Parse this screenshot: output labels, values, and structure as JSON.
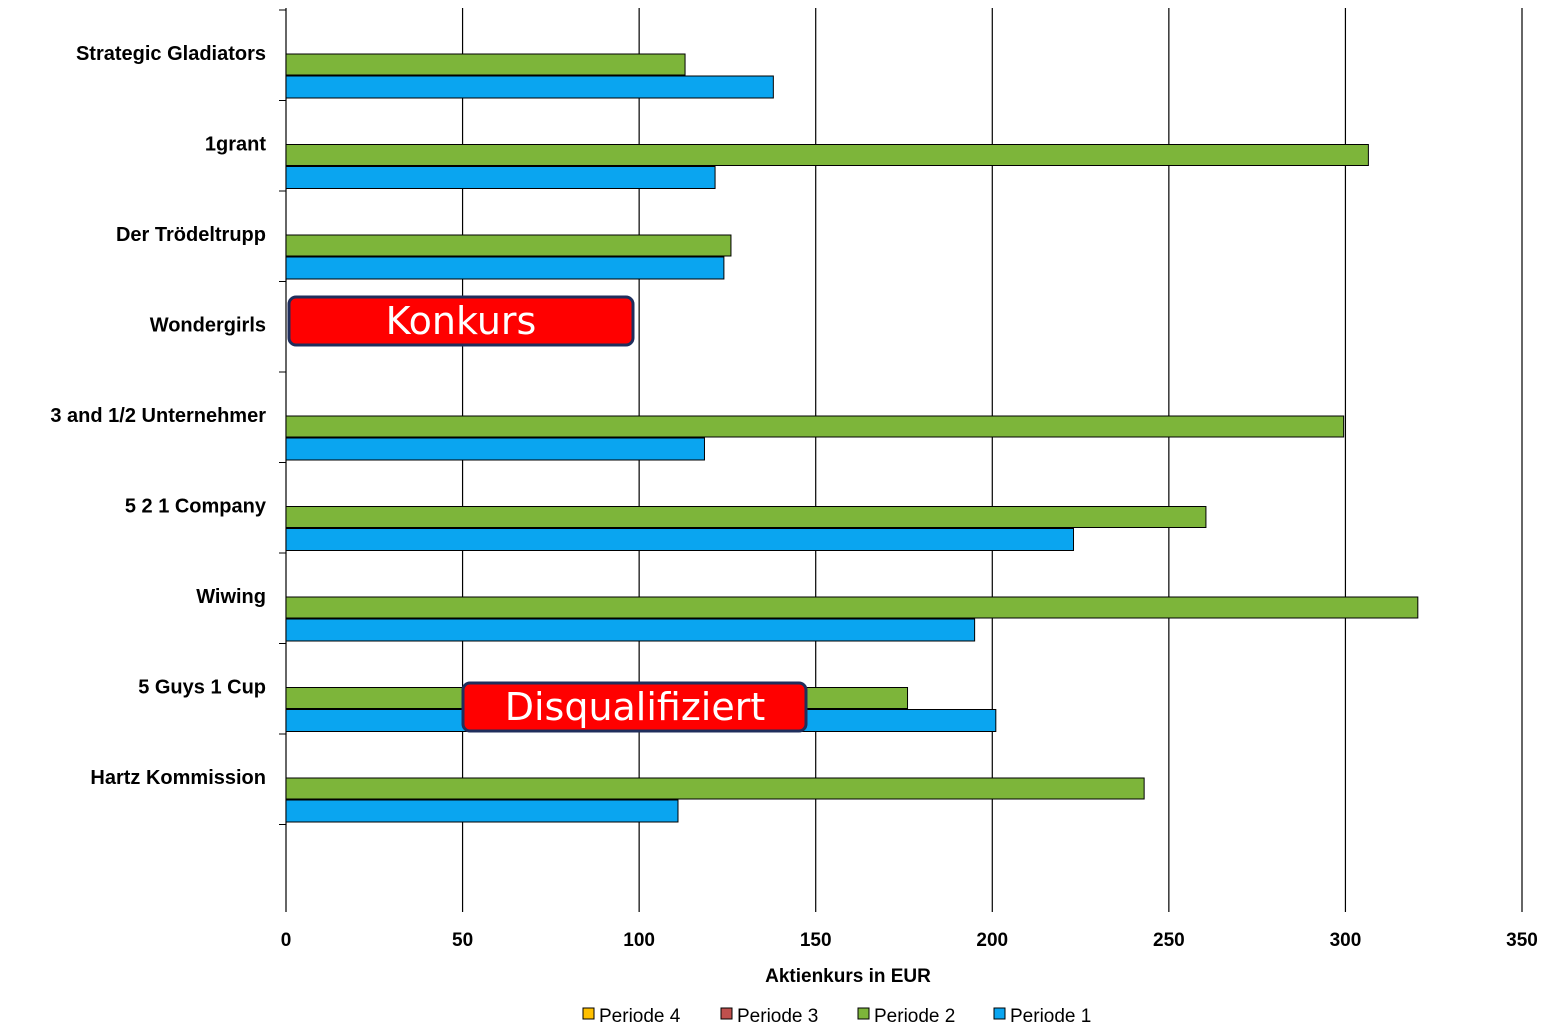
{
  "chart_data": {
    "type": "bar",
    "orientation": "horizontal",
    "categories": [
      "Strategic Gladiators",
      "1grant",
      "Der Trödeltrupp",
      "Wondergirls",
      "3 and 1/2 Unternehmer",
      "5 2 1 Company",
      "Wiwing",
      "5 Guys 1 Cup",
      "Hartz Kommission"
    ],
    "series": [
      {
        "name": "Periode 4",
        "color": "#FFC000",
        "values": [
          null,
          null,
          null,
          null,
          null,
          null,
          null,
          null,
          null
        ]
      },
      {
        "name": "Periode 3",
        "color": "#C0504D",
        "values": [
          null,
          null,
          null,
          null,
          null,
          null,
          null,
          null,
          null
        ]
      },
      {
        "name": "Periode 2",
        "color": "#7DB53A",
        "values": [
          113,
          306.5,
          126,
          null,
          299.5,
          260.5,
          320.5,
          176,
          243
        ]
      },
      {
        "name": "Periode 1",
        "color": "#0AA5F0",
        "values": [
          138,
          121.5,
          124,
          null,
          118.5,
          223,
          195,
          201,
          111
        ]
      }
    ],
    "xlabel": "Aktienkurs  in EUR",
    "xlim": [
      0,
      350
    ],
    "xticks": [
      0,
      50,
      100,
      150,
      200,
      250,
      300,
      350
    ],
    "grid": true,
    "legend_position": "bottom",
    "annotations": [
      {
        "text": "Konkurs",
        "category": "Wondergirls"
      },
      {
        "text": "Disqualifiziert",
        "category": "5 Guys 1 Cup"
      }
    ]
  }
}
